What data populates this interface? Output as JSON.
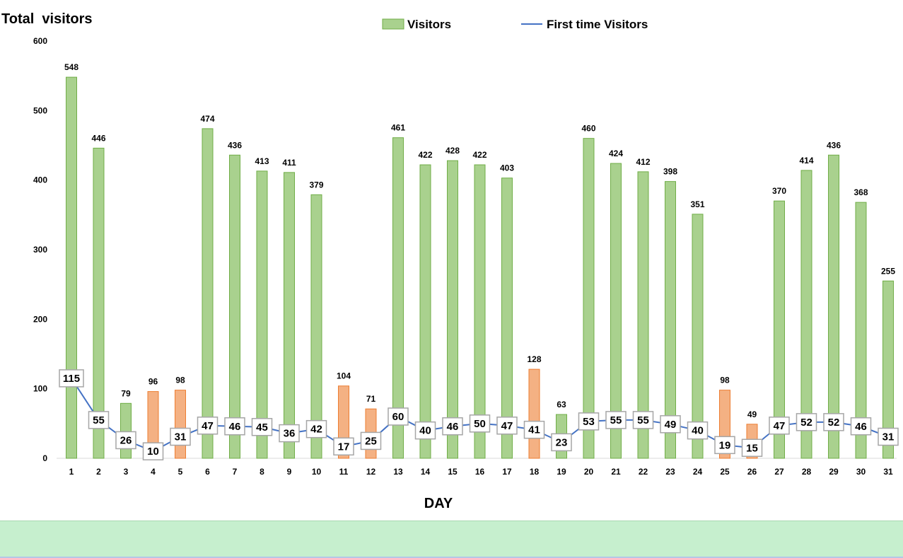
{
  "chart_data": {
    "type": "bar",
    "title": "Total  visitors",
    "xlabel": "DAY",
    "ylabel": "",
    "ylim": [
      0,
      600
    ],
    "yticks": [
      0,
      100,
      200,
      300,
      400,
      500,
      600
    ],
    "categories": [
      "1",
      "2",
      "3",
      "4",
      "5",
      "6",
      "7",
      "8",
      "9",
      "10",
      "11",
      "12",
      "13",
      "14",
      "15",
      "16",
      "17",
      "18",
      "19",
      "20",
      "21",
      "22",
      "23",
      "24",
      "25",
      "26",
      "27",
      "28",
      "29",
      "30",
      "31"
    ],
    "legend_position": "top",
    "grid": false,
    "series": [
      {
        "name": "Visitors",
        "type": "bar",
        "color": "#a9d18e",
        "highlight_color": "#f4b183",
        "values": [
          548,
          446,
          79,
          96,
          98,
          474,
          436,
          413,
          411,
          379,
          104,
          71,
          461,
          422,
          428,
          422,
          403,
          128,
          63,
          460,
          424,
          412,
          398,
          351,
          98,
          49,
          370,
          414,
          436,
          368,
          255
        ],
        "highlighted": [
          false,
          false,
          false,
          true,
          true,
          false,
          false,
          false,
          false,
          false,
          true,
          true,
          false,
          false,
          false,
          false,
          false,
          true,
          false,
          false,
          false,
          false,
          false,
          false,
          true,
          true,
          false,
          false,
          false,
          false,
          false
        ]
      },
      {
        "name": "First time Visitors",
        "type": "line",
        "color": "#4472c4",
        "values": [
          115,
          55,
          26,
          10,
          31,
          47,
          46,
          45,
          36,
          42,
          17,
          25,
          60,
          40,
          46,
          50,
          47,
          41,
          23,
          53,
          55,
          55,
          49,
          40,
          19,
          15,
          47,
          52,
          52,
          46,
          31
        ]
      }
    ]
  }
}
